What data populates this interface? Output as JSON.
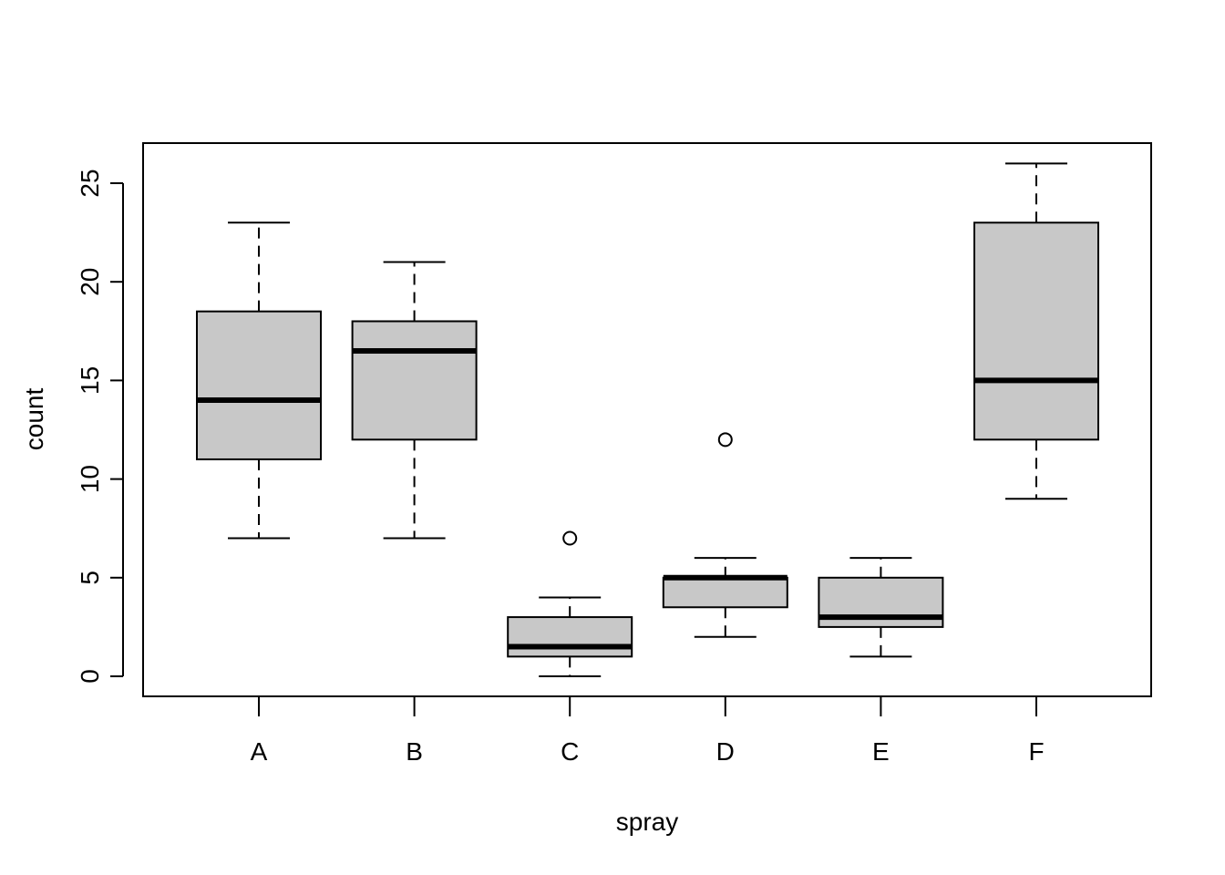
{
  "chart_data": {
    "type": "boxplot",
    "title": "",
    "xlabel": "spray",
    "ylabel": "count",
    "categories": [
      "A",
      "B",
      "C",
      "D",
      "E",
      "F"
    ],
    "boxes": [
      {
        "category": "A",
        "whisker_low": 7,
        "q1": 11,
        "median": 14,
        "q3": 18.5,
        "whisker_high": 23,
        "outliers": []
      },
      {
        "category": "B",
        "whisker_low": 7,
        "q1": 12,
        "median": 16.5,
        "q3": 18,
        "whisker_high": 21,
        "outliers": []
      },
      {
        "category": "C",
        "whisker_low": 0,
        "q1": 1,
        "median": 1.5,
        "q3": 3,
        "whisker_high": 4,
        "outliers": [
          7
        ]
      },
      {
        "category": "D",
        "whisker_low": 2,
        "q1": 3.5,
        "median": 5,
        "q3": 5,
        "whisker_high": 6,
        "outliers": [
          12
        ]
      },
      {
        "category": "E",
        "whisker_low": 1,
        "q1": 2.5,
        "median": 3,
        "q3": 5,
        "whisker_high": 6,
        "outliers": []
      },
      {
        "category": "F",
        "whisker_low": 9,
        "q1": 12,
        "median": 15,
        "q3": 23,
        "whisker_high": 26,
        "outliers": []
      }
    ],
    "y_ticks": [
      0,
      5,
      10,
      15,
      20,
      25
    ],
    "ylim": [
      -1,
      27
    ],
    "grid": false,
    "box_fill": "#c8c8c8",
    "line_color": "#000000"
  }
}
